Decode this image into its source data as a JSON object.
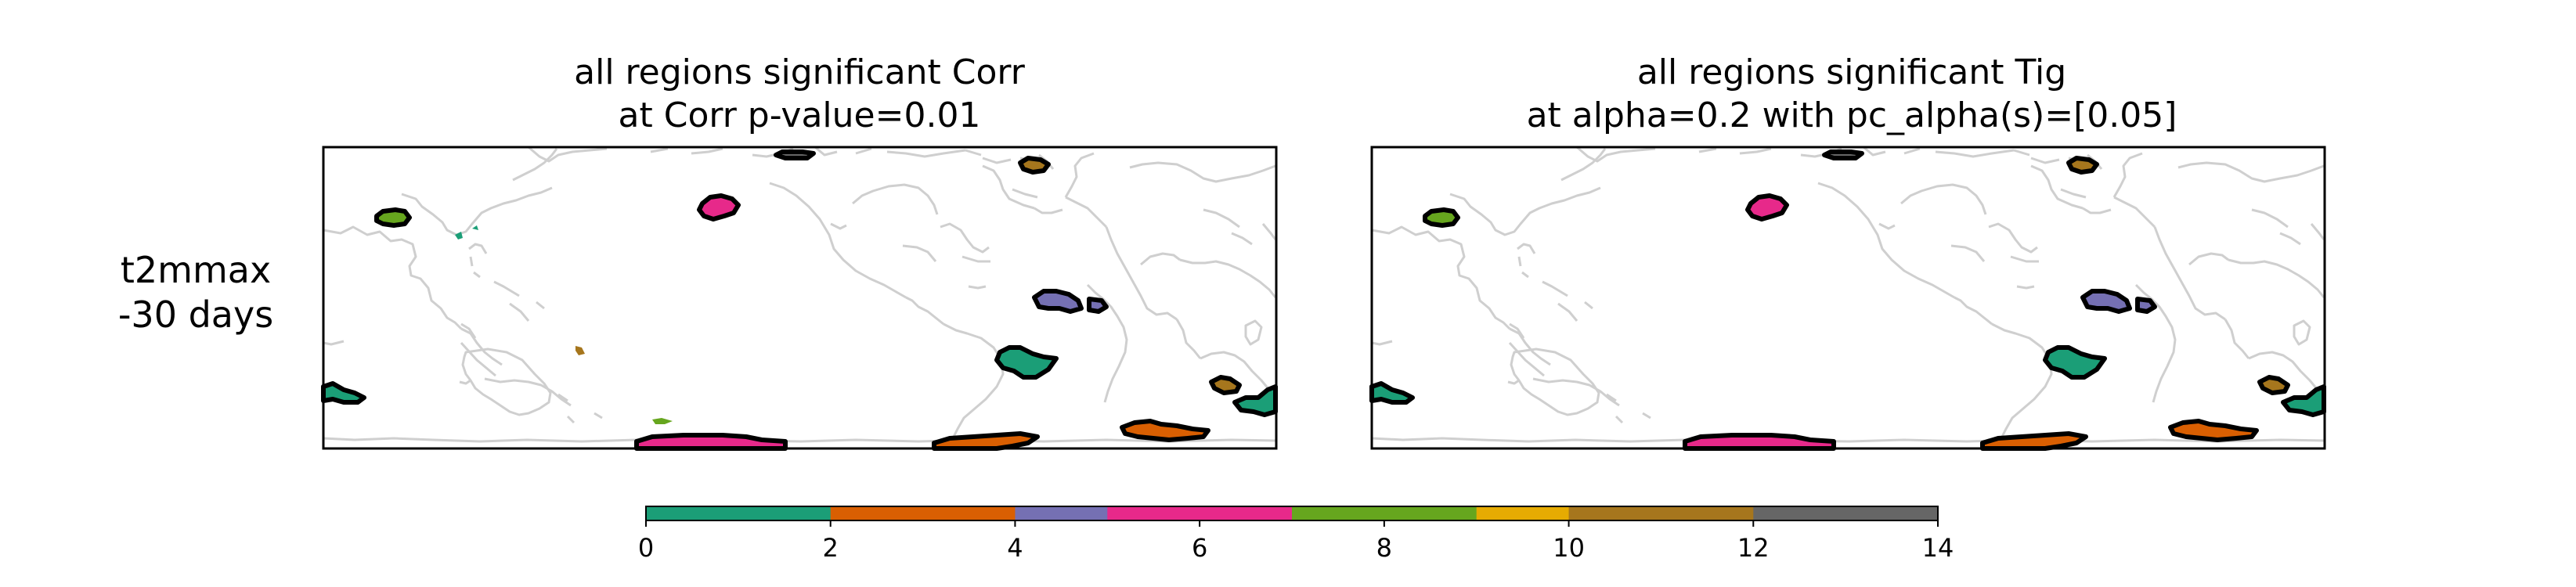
{
  "chart_data": {
    "type": "map",
    "row_label": [
      "t2mmax",
      "-30 days"
    ],
    "panels": [
      {
        "title": [
          "all regions significant Corr",
          "at Corr p-value=0.01"
        ],
        "regions": [
          {
            "id": "r-np-west",
            "value": 8
          },
          {
            "id": "r-taiwan",
            "value": 0,
            "outline": false
          },
          {
            "id": "r-npac-mid",
            "value": 6
          },
          {
            "id": "r-arctic",
            "value": 14
          },
          {
            "id": "r-greenland",
            "value": 10
          },
          {
            "id": "r-natl-trop",
            "value": 4
          },
          {
            "id": "r-satl",
            "value": 0
          },
          {
            "id": "r-aus-east",
            "value": 10,
            "outline": false
          },
          {
            "id": "r-spac-small",
            "value": 8,
            "outline": false
          },
          {
            "id": "r-io-south",
            "value": 0
          },
          {
            "id": "r-io-mid",
            "value": 10
          },
          {
            "id": "r-sh-far-right",
            "value": 0
          },
          {
            "id": "r-so-pink",
            "value": 6
          },
          {
            "id": "r-so-orange",
            "value": 2
          },
          {
            "id": "r-so-orange2",
            "value": 2
          }
        ]
      },
      {
        "title": [
          "all regions significant Tig",
          "at alpha=0.2 with pc_alpha(s)=[0.05]"
        ],
        "regions": [
          {
            "id": "r-np-west",
            "value": 8
          },
          {
            "id": "r-npac-mid",
            "value": 6
          },
          {
            "id": "r-arctic",
            "value": 14
          },
          {
            "id": "r-greenland",
            "value": 10
          },
          {
            "id": "r-natl-trop",
            "value": 4
          },
          {
            "id": "r-satl",
            "value": 0
          },
          {
            "id": "r-io-south",
            "value": 0
          },
          {
            "id": "r-io-mid",
            "value": 10
          },
          {
            "id": "r-sh-far-right",
            "value": 0
          },
          {
            "id": "r-so-pink",
            "value": 6
          },
          {
            "id": "r-so-orange",
            "value": 2
          },
          {
            "id": "r-so-orange2",
            "value": 2
          }
        ]
      }
    ],
    "colorbar": {
      "range": [
        0,
        14
      ],
      "ticks": [
        "0",
        "2",
        "4",
        "6",
        "8",
        "10",
        "12",
        "14"
      ],
      "segments": [
        {
          "from": 0,
          "to": 2,
          "color": "#1b9e77"
        },
        {
          "from": 2,
          "to": 4,
          "color": "#d95f02"
        },
        {
          "from": 4,
          "to": 5,
          "color": "#7570b3"
        },
        {
          "from": 5,
          "to": 7,
          "color": "#e7298a"
        },
        {
          "from": 7,
          "to": 9,
          "color": "#66a61e"
        },
        {
          "from": 9,
          "to": 10,
          "color": "#e6ab02"
        },
        {
          "from": 10,
          "to": 12,
          "color": "#a6761d"
        },
        {
          "from": 12,
          "to": 14,
          "color": "#666666"
        }
      ]
    },
    "colors": {
      "coastline": "#cfcfcf",
      "frame": "#000000",
      "outline": "#000000"
    }
  }
}
